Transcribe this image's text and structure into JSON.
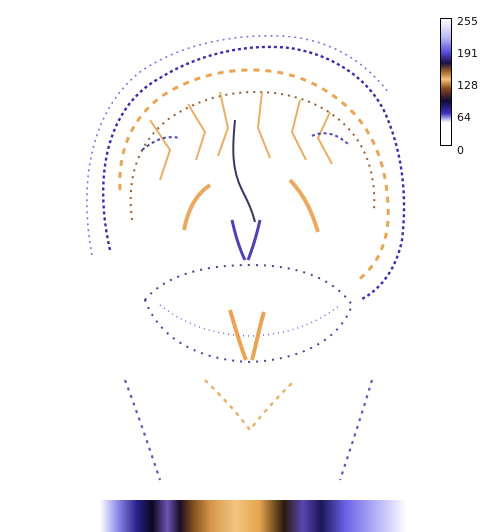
{
  "viewer": {
    "colormap": {
      "ticks": [
        "255",
        "191",
        "128",
        "64",
        "0"
      ],
      "colors": {
        "white": "#ffffff",
        "indigo": "#3a2ea8",
        "blue": "#5a4fe0",
        "dark": "#1b1246",
        "orange": "#e8a04a",
        "tan": "#f2c27a",
        "brown": "#8a4a1a"
      }
    }
  }
}
